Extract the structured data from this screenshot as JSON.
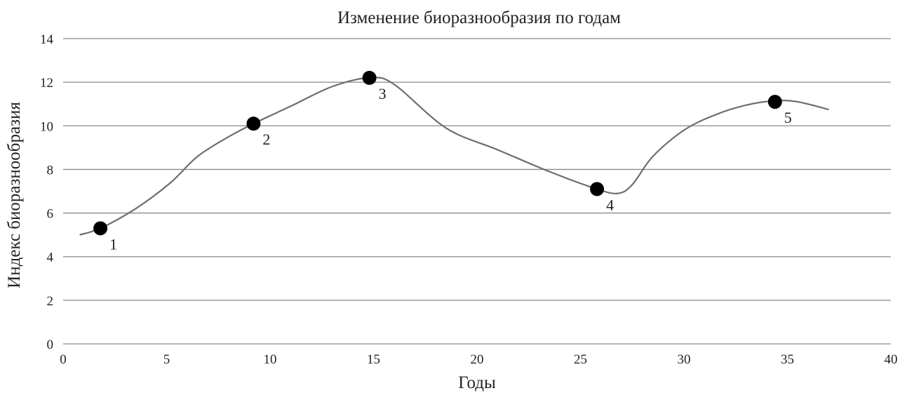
{
  "chart_data": {
    "type": "line",
    "title": "Изменение биоразнообразия по годам",
    "xlabel": "Годы",
    "ylabel": "Индекс биоразнообразия",
    "xlim": [
      0,
      40
    ],
    "ylim": [
      0,
      14
    ],
    "x_ticks": [
      "0",
      "5",
      "10",
      "15",
      "20",
      "25",
      "30",
      "35",
      "40"
    ],
    "y_ticks": [
      "0",
      "2",
      "4",
      "6",
      "8",
      "10",
      "12",
      "14"
    ],
    "grid": "horizontal",
    "legend": "none",
    "series": [
      {
        "curve": [
          [
            0.8,
            5.0
          ],
          [
            1.8,
            5.3
          ],
          [
            3.5,
            6.2
          ],
          [
            5.2,
            7.4
          ],
          [
            6.5,
            8.6
          ],
          [
            8.0,
            9.5
          ],
          [
            9.2,
            10.1
          ],
          [
            11.0,
            10.9
          ],
          [
            13.0,
            11.8
          ],
          [
            14.8,
            12.2
          ],
          [
            16.0,
            11.9
          ],
          [
            18.5,
            9.9
          ],
          [
            21.0,
            8.9
          ],
          [
            23.5,
            7.9
          ],
          [
            25.8,
            7.1
          ],
          [
            26.8,
            6.9
          ],
          [
            27.5,
            7.3
          ],
          [
            28.5,
            8.6
          ],
          [
            30.0,
            9.8
          ],
          [
            31.5,
            10.5
          ],
          [
            33.0,
            10.95
          ],
          [
            34.4,
            11.15
          ],
          [
            35.5,
            11.1
          ],
          [
            37.0,
            10.75
          ]
        ],
        "points": [
          {
            "label": "1",
            "x": 1.8,
            "y": 5.3
          },
          {
            "label": "2",
            "x": 9.2,
            "y": 10.1
          },
          {
            "label": "3",
            "x": 14.8,
            "y": 12.2
          },
          {
            "label": "4",
            "x": 25.8,
            "y": 7.1
          },
          {
            "label": "5",
            "x": 34.4,
            "y": 11.1
          }
        ]
      }
    ],
    "colors": {
      "line": "#6e6e6e",
      "marker": "#000000",
      "grid": "#8a8a8a"
    }
  }
}
